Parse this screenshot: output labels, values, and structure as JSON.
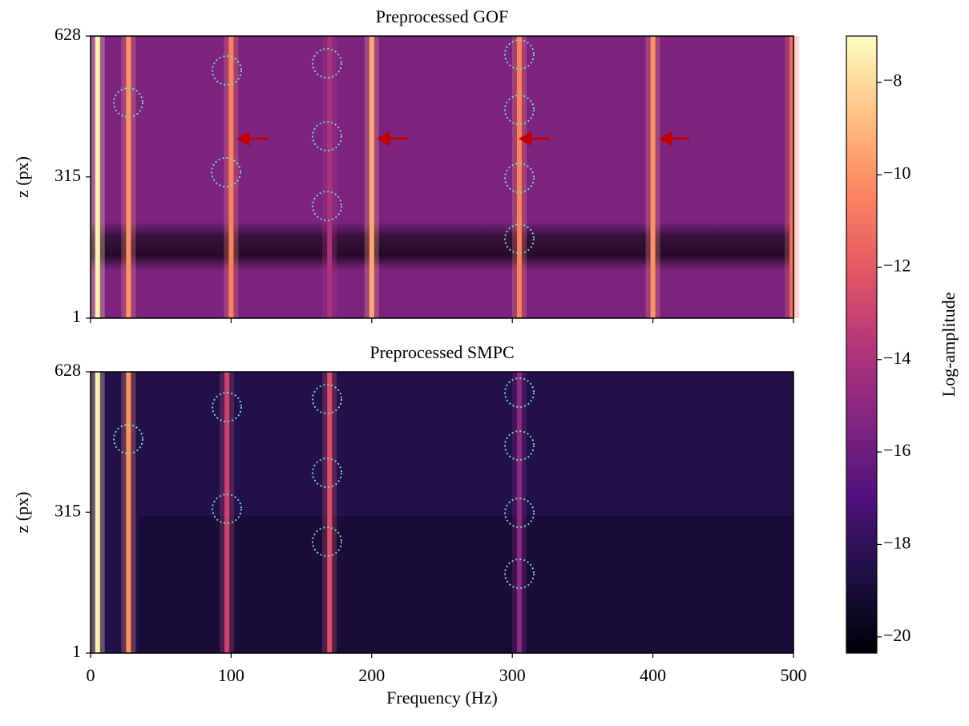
{
  "chart_data": [
    {
      "type": "heatmap",
      "title": "Preprocessed GOF",
      "ylabel": "z (px)",
      "xlim": [
        0,
        500
      ],
      "xticks": [
        0,
        100,
        200,
        300,
        400,
        500
      ],
      "ylim": [
        1,
        628
      ],
      "yticks": [
        1,
        315,
        628
      ],
      "background": -15.5,
      "lines": [
        {
          "freq": 5,
          "level": -7.3
        },
        {
          "freq": 27,
          "level": -10
        },
        {
          "freq": 100,
          "level": -10.5
        },
        {
          "freq": 170,
          "level": -14
        },
        {
          "freq": 200,
          "level": -9.5
        },
        {
          "freq": 305,
          "level": -10.5
        },
        {
          "freq": 400,
          "level": -10
        },
        {
          "freq": 499,
          "level": -11
        }
      ]
    },
    {
      "type": "heatmap",
      "title": "Preprocessed SMPC",
      "ylabel": "z (px)",
      "xlabel": "Frequency (Hz)",
      "xlim": [
        0,
        500
      ],
      "xticks": [
        0,
        100,
        200,
        300,
        400,
        500
      ],
      "ylim": [
        1,
        628
      ],
      "yticks": [
        1,
        315,
        628
      ],
      "background": -18.5,
      "lines": [
        {
          "freq": 5,
          "level": -7.3
        },
        {
          "freq": 27,
          "level": -10
        },
        {
          "freq": 97,
          "level": -13
        },
        {
          "freq": 170,
          "level": -12.5
        },
        {
          "freq": 305,
          "level": -15
        }
      ]
    }
  ],
  "colorbar": {
    "label": "Log-amplitude",
    "clim": [
      -20.35,
      -7.0
    ],
    "ticks": [
      {
        "value": -8,
        "label": "−8"
      },
      {
        "value": -10,
        "label": "−10"
      },
      {
        "value": -12,
        "label": "−12"
      },
      {
        "value": -14,
        "label": "−14"
      },
      {
        "value": -16,
        "label": "−16"
      },
      {
        "value": -18,
        "label": "−18"
      },
      {
        "value": -20,
        "label": "−20"
      }
    ],
    "colormap": [
      "#000004",
      "#1c1044",
      "#4f127b",
      "#812581",
      "#b5367a",
      "#e55964",
      "#fb8761",
      "#fec287",
      "#fcfdbf"
    ]
  }
}
